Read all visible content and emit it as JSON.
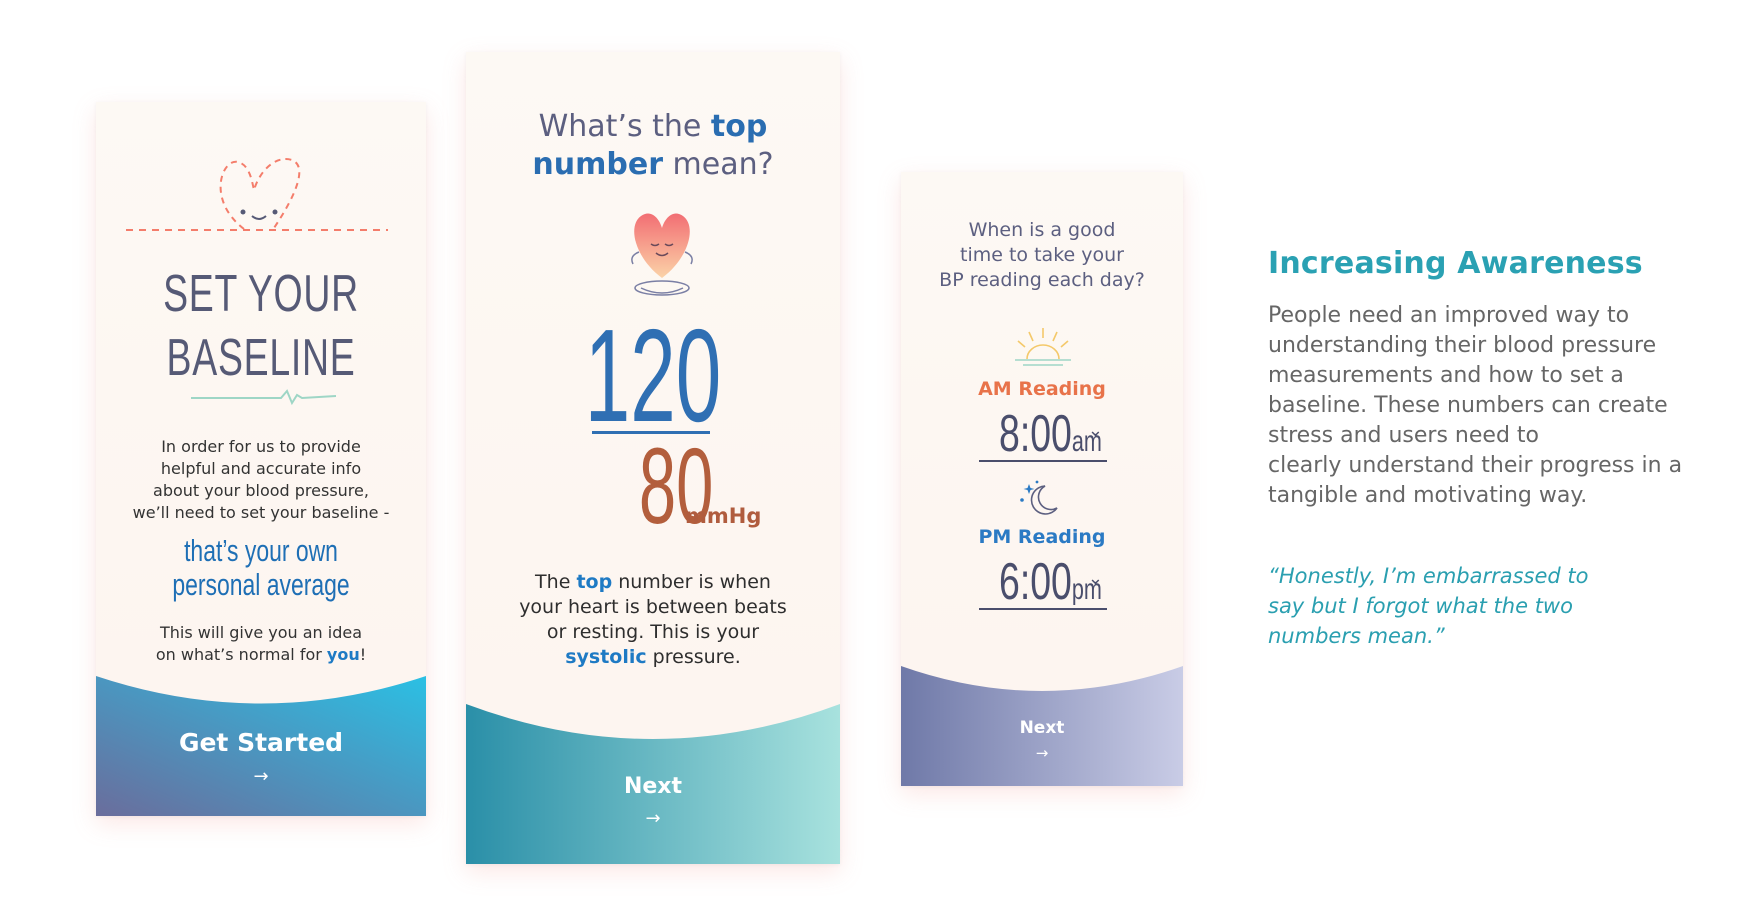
{
  "card1": {
    "title_line1": "SET YOUR",
    "title_line2": "BASELINE",
    "intro_lines": [
      "In order for us to provide",
      "helpful and accurate info",
      "about your blood pressure,",
      "we’ll need to set your baseline -"
    ],
    "highlight_lines": [
      "that’s your own",
      "personal average"
    ],
    "outro_line1": "This will give you an idea",
    "outro_line2_prefix": "on what’s normal for ",
    "outro_line2_accent": "you",
    "outro_line2_suffix": "!",
    "button_label": "Get Started",
    "arrow": "→",
    "icon": "heart-face-icon",
    "colors": {
      "footer_start": "#6a6d9c",
      "footer_end": "#2bc0e4",
      "heart": "#f47d6b",
      "title": "#565a76"
    }
  },
  "card2": {
    "question_prefix": "What’s the ",
    "question_accent1": "top",
    "question_accent2": "number",
    "question_suffix": " mean?",
    "systolic": "120",
    "diastolic": "80",
    "unit": "mmHg",
    "desc_prefix": "The ",
    "desc_accent1": "top",
    "desc_line1_suffix": " number is when",
    "desc_line2": "your heart is between beats",
    "desc_line3": "or resting. This is your",
    "desc_accent2": "systolic",
    "desc_line4_suffix": " pressure.",
    "button_label": "Next",
    "arrow": "→",
    "icon": "meditating-heart-icon",
    "colors": {
      "systolic": "#2f6fb3",
      "diastolic": "#b35e3c",
      "footer_start": "#2a8fa8",
      "footer_end": "#a8e2de"
    }
  },
  "card3": {
    "question_lines": [
      "When is a good",
      "time to take your",
      "BP reading each day?"
    ],
    "am_label": "AM Reading",
    "am_time": "8:00",
    "am_suffix": "am",
    "pm_label": "PM Reading",
    "pm_time": "6:00",
    "pm_suffix": "pm",
    "dropdown_glyph": "⌄",
    "button_label": "Next",
    "arrow": "→",
    "icons": [
      "sunrise-icon",
      "moon-icon"
    ],
    "colors": {
      "am": "#e8734a",
      "pm": "#2b7ac4",
      "footer_start": "#6f79a8",
      "footer_end": "#c9cce6"
    }
  },
  "side": {
    "title": "Increasing Awareness",
    "body_lines": [
      "People need an improved way to",
      "understanding their blood pressure",
      "measurements and how to set a",
      "baseline. These numbers can create",
      "stress and users need to",
      "clearly understand their progress in a",
      "tangible and motivating way."
    ],
    "quote_lines": [
      "“Honestly, I’m embarrassed to",
      "say but I forgot what the two",
      "numbers mean.”"
    ],
    "colors": {
      "title": "#2aa1b3",
      "body": "#666666",
      "quote": "#2a9fb0"
    }
  }
}
